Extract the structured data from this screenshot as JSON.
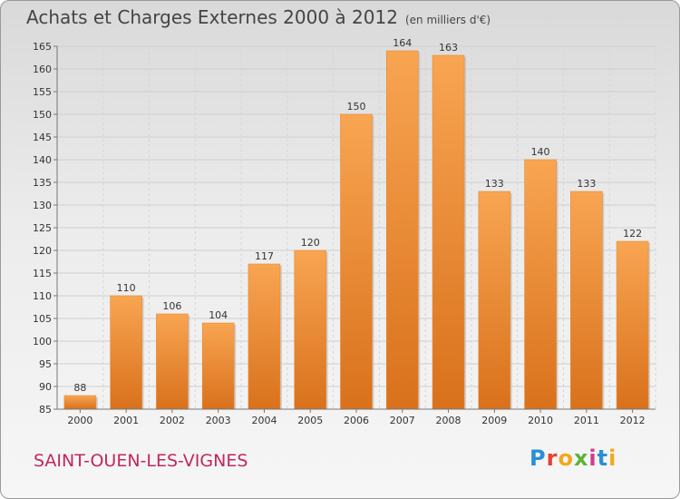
{
  "chart_data": {
    "type": "bar",
    "title": "Achats et Charges Externes 2000 à 2012",
    "unit": "(en milliers d'€)",
    "categories": [
      "2000",
      "2001",
      "2002",
      "2003",
      "2004",
      "2005",
      "2006",
      "2007",
      "2008",
      "2009",
      "2010",
      "2011",
      "2012"
    ],
    "values": [
      88,
      110,
      106,
      104,
      117,
      120,
      150,
      164,
      163,
      133,
      140,
      133,
      122
    ],
    "ylim": [
      85,
      165
    ],
    "yticks": [
      85,
      90,
      95,
      100,
      105,
      110,
      115,
      120,
      125,
      130,
      135,
      140,
      145,
      150,
      155,
      160,
      165
    ],
    "grid": true,
    "bar_color": "#f0953a"
  },
  "commune": "SAINT-OUEN-LES-VIGNES",
  "logo": [
    "P",
    "r",
    "o",
    "x",
    "i",
    "t",
    "i"
  ]
}
